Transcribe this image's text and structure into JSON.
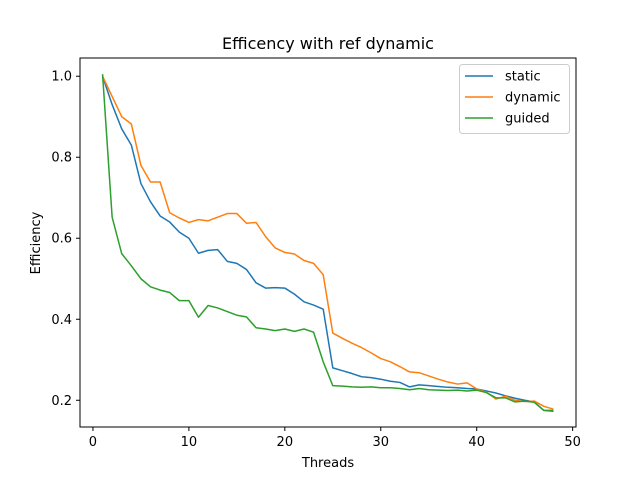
{
  "chart_data": {
    "type": "line",
    "title": "Efficency with ref dynamic",
    "xlabel": "Threads",
    "ylabel": "Efficiency",
    "xlim": [
      -1.35,
      50.35
    ],
    "ylim": [
      0.134,
      1.045
    ],
    "x_ticks": [
      0,
      10,
      20,
      30,
      40,
      50
    ],
    "y_ticks": [
      0.2,
      0.4,
      0.6,
      0.8,
      1.0
    ],
    "x_tick_labels": [
      "0",
      "10",
      "20",
      "30",
      "40",
      "50"
    ],
    "y_tick_labels": [
      "0.2",
      "0.4",
      "0.6",
      "0.8",
      "1.0"
    ],
    "grid": false,
    "legend_position": "top-right",
    "x": [
      1,
      2,
      3,
      4,
      5,
      6,
      7,
      8,
      9,
      10,
      11,
      12,
      13,
      14,
      15,
      16,
      17,
      18,
      19,
      20,
      21,
      22,
      23,
      24,
      25,
      26,
      27,
      28,
      29,
      30,
      31,
      32,
      33,
      34,
      35,
      36,
      37,
      38,
      39,
      40,
      41,
      42,
      43,
      44,
      45,
      46,
      47,
      48
    ],
    "series": [
      {
        "name": "static",
        "color": "#1f77b4",
        "values": [
          1.0,
          0.93,
          0.87,
          0.83,
          0.735,
          0.69,
          0.655,
          0.64,
          0.615,
          0.6,
          0.563,
          0.57,
          0.572,
          0.543,
          0.538,
          0.523,
          0.49,
          0.477,
          0.478,
          0.477,
          0.462,
          0.443,
          0.435,
          0.425,
          0.28,
          0.273,
          0.266,
          0.258,
          0.256,
          0.252,
          0.247,
          0.244,
          0.233,
          0.238,
          0.236,
          0.234,
          0.232,
          0.231,
          0.229,
          0.228,
          0.223,
          0.218,
          0.211,
          0.205,
          0.2,
          0.196,
          0.175,
          0.173
        ]
      },
      {
        "name": "dynamic",
        "color": "#ff7f0e",
        "values": [
          1.0,
          0.95,
          0.9,
          0.882,
          0.78,
          0.739,
          0.739,
          0.663,
          0.65,
          0.639,
          0.646,
          0.643,
          0.652,
          0.661,
          0.661,
          0.637,
          0.639,
          0.604,
          0.576,
          0.565,
          0.561,
          0.545,
          0.538,
          0.51,
          0.366,
          0.353,
          0.341,
          0.33,
          0.317,
          0.303,
          0.295,
          0.283,
          0.27,
          0.268,
          0.26,
          0.252,
          0.245,
          0.24,
          0.243,
          0.228,
          0.22,
          0.203,
          0.21,
          0.2,
          0.197,
          0.198,
          0.185,
          0.178
        ]
      },
      {
        "name": "guided",
        "color": "#2ca02c",
        "values": [
          1.005,
          0.652,
          0.562,
          0.532,
          0.5,
          0.48,
          0.472,
          0.466,
          0.446,
          0.446,
          0.405,
          0.434,
          0.428,
          0.419,
          0.41,
          0.406,
          0.379,
          0.376,
          0.372,
          0.376,
          0.37,
          0.376,
          0.368,
          0.295,
          0.236,
          0.235,
          0.233,
          0.232,
          0.233,
          0.231,
          0.231,
          0.229,
          0.226,
          0.229,
          0.226,
          0.225,
          0.224,
          0.225,
          0.223,
          0.225,
          0.219,
          0.206,
          0.206,
          0.196,
          0.198,
          0.195,
          0.175,
          0.175
        ]
      }
    ]
  }
}
